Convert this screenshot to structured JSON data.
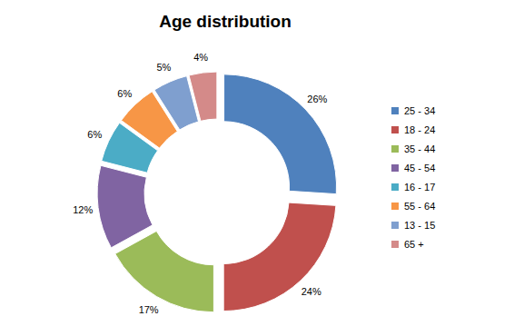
{
  "chart_data": {
    "type": "pie",
    "title": "Age distribution",
    "categories": [
      "25 - 34",
      "18 - 24",
      "35 - 44",
      "45 - 54",
      "16 - 17",
      "55 - 64",
      "13 - 15",
      "65 +"
    ],
    "values": [
      26,
      24,
      17,
      12,
      6,
      6,
      5,
      4
    ],
    "value_labels": [
      "26%",
      "24%",
      "17%",
      "12%",
      "6%",
      "6%",
      "5%",
      "4%"
    ],
    "colors": [
      "#4f81bd",
      "#c0504d",
      "#9bbb59",
      "#8064a2",
      "#4bacc6",
      "#f79646",
      "#7f9fcf",
      "#d48a89"
    ],
    "data_labels": true,
    "legend": "right"
  }
}
